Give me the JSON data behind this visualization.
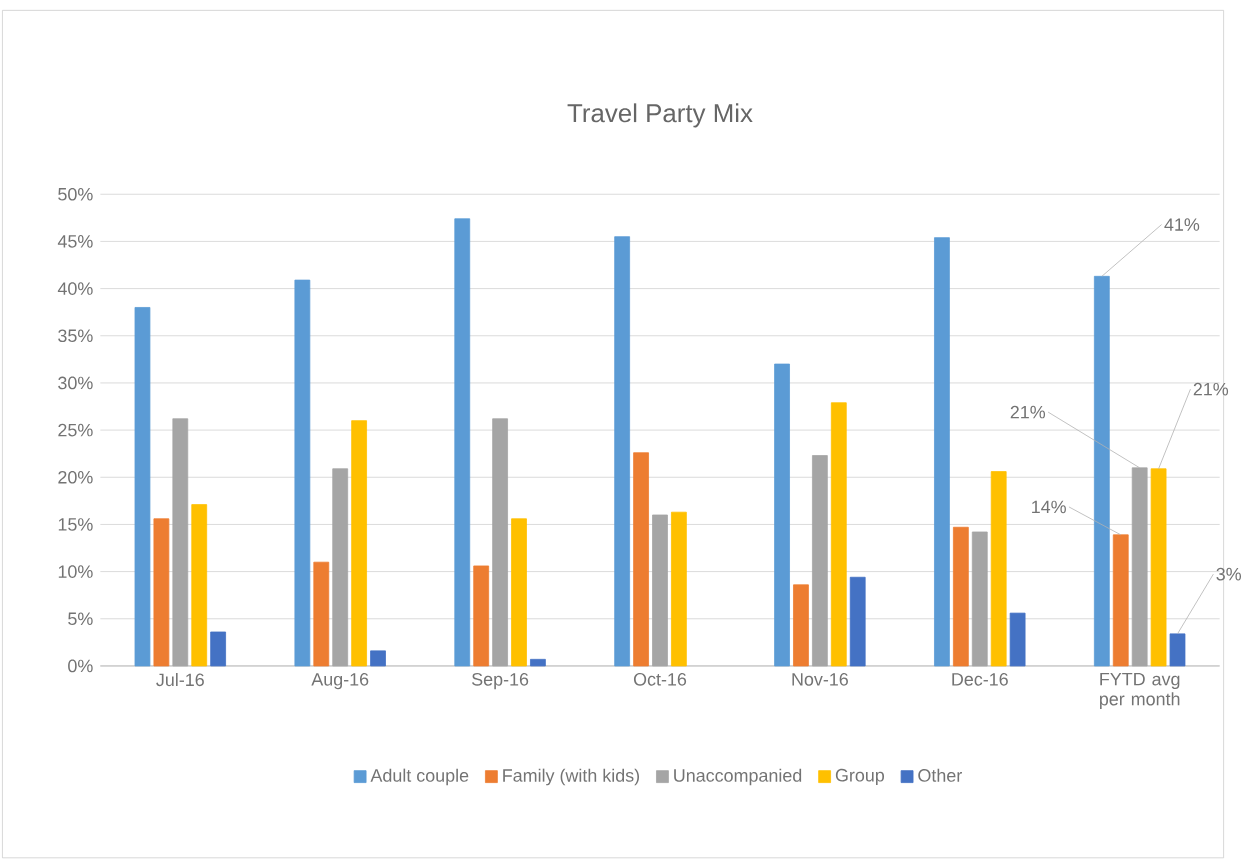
{
  "chart_data": {
    "type": "bar",
    "title": "Travel Party Mix",
    "categories": [
      "Jul-16",
      "Aug-16",
      "Sep-16",
      "Oct-16",
      "Nov-16",
      "Dec-16",
      "FYTD avg per month"
    ],
    "series": [
      {
        "name": "Adult couple",
        "color": "#5b9bd5",
        "values": [
          38,
          40.9,
          47.4,
          45.5,
          32,
          45.4,
          41.3
        ],
        "value_labels": [
          null,
          null,
          null,
          null,
          null,
          null,
          "41%"
        ]
      },
      {
        "name": "Family (with kids)",
        "color": "#ed7d31",
        "values": [
          15.6,
          11,
          10.6,
          22.6,
          8.6,
          14.7,
          13.9
        ],
        "value_labels": [
          null,
          null,
          null,
          null,
          null,
          null,
          "14%"
        ]
      },
      {
        "name": "Unaccompanied",
        "color": "#a5a5a5",
        "values": [
          26.2,
          20.9,
          26.2,
          16,
          22.3,
          14.2,
          21
        ],
        "value_labels": [
          null,
          null,
          null,
          null,
          null,
          null,
          "21%"
        ]
      },
      {
        "name": "Group",
        "color": "#ffc000",
        "values": [
          17.1,
          26,
          15.6,
          16.3,
          27.9,
          20.6,
          20.9
        ],
        "value_labels": [
          null,
          null,
          null,
          null,
          null,
          null,
          "21%"
        ]
      },
      {
        "name": "Other",
        "color": "#4472c4",
        "values": [
          3.6,
          1.6,
          0.7,
          null,
          9.4,
          5.6,
          3.4
        ],
        "value_labels": [
          null,
          null,
          null,
          null,
          null,
          null,
          "3%"
        ]
      }
    ],
    "ylim": [
      0,
      50
    ],
    "yticks": [
      {
        "value": 0,
        "label": "0%"
      },
      {
        "value": 5,
        "label": "5%"
      },
      {
        "value": 10,
        "label": "10%"
      },
      {
        "value": 15,
        "label": "15%"
      },
      {
        "value": 20,
        "label": "20%"
      },
      {
        "value": 25,
        "label": "25%"
      },
      {
        "value": 30,
        "label": "30%"
      },
      {
        "value": 35,
        "label": "35%"
      },
      {
        "value": 40,
        "label": "40%"
      },
      {
        "value": 45,
        "label": "45%"
      },
      {
        "value": 50,
        "label": "50%"
      }
    ],
    "grid": "y",
    "legend": "bottom"
  }
}
